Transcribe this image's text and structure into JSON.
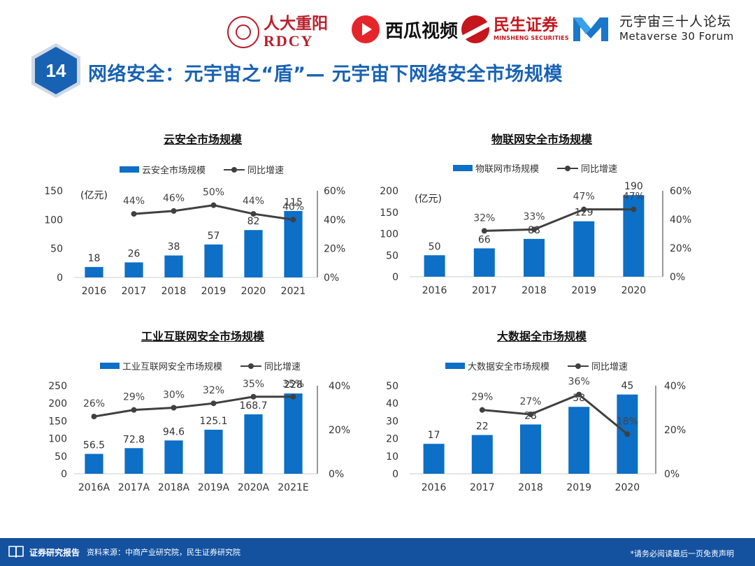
{
  "logos": {
    "rdcy_cn": "人大重阳",
    "rdcy_en": "RDCY",
    "xigua": "西瓜视频",
    "minsheng_cn": "民生证券",
    "minsheng_en": "MINSHENG SECURITIES",
    "forum_cn": "元宇宙三十人论坛",
    "forum_en": "Metaverse 30 Forum"
  },
  "page": {
    "number": "14",
    "title": "网络安全：元宇宙之“盾”— 元宇宙下网络安全市场规模"
  },
  "colors": {
    "bar": "#0d6fc6",
    "line": "#404040",
    "title": "#1862b3",
    "footer": "#1452a0"
  },
  "chart_data": [
    {
      "type": "bar+line",
      "title": "云安全市场规模",
      "unit": "(亿元)",
      "categories": [
        "2016",
        "2017",
        "2018",
        "2019",
        "2020",
        "2021"
      ],
      "series": [
        {
          "name": "云安全市场规模",
          "type": "bar",
          "axis": "left",
          "values": [
            18,
            26,
            38,
            57,
            82,
            115
          ],
          "labels": [
            "18",
            "26",
            "38",
            "57",
            "82",
            "115"
          ]
        },
        {
          "name": "同比增速",
          "type": "line",
          "axis": "right",
          "values": [
            null,
            44,
            46,
            50,
            44,
            40
          ],
          "labels": [
            "",
            "44%",
            "46%",
            "50%",
            "44%",
            "40%"
          ]
        }
      ],
      "ylim": [
        0,
        150
      ],
      "yticks": [
        "0",
        "50",
        "100",
        "150"
      ],
      "y2lim": [
        0,
        60
      ],
      "y2ticks": [
        "0%",
        "20%",
        "40%",
        "60%"
      ]
    },
    {
      "type": "bar+line",
      "title": "物联网安全市场规模",
      "unit": "(亿元)",
      "categories": [
        "2016",
        "2017",
        "2018",
        "2019",
        "2020"
      ],
      "series": [
        {
          "name": "物联网市场规模",
          "type": "bar",
          "axis": "left",
          "values": [
            50,
            66,
            88,
            129,
            190
          ],
          "labels": [
            "50",
            "66",
            "88",
            "129",
            "190"
          ]
        },
        {
          "name": "同比增速",
          "type": "line",
          "axis": "right",
          "values": [
            null,
            32,
            33,
            47,
            47
          ],
          "labels": [
            "",
            "32%",
            "33%",
            "47%",
            "47%"
          ]
        }
      ],
      "ylim": [
        0,
        200
      ],
      "yticks": [
        "0",
        "50",
        "100",
        "150",
        "200"
      ],
      "y2lim": [
        0,
        60
      ],
      "y2ticks": [
        "0%",
        "20%",
        "40%",
        "60%"
      ]
    },
    {
      "type": "bar+line",
      "title": "工业互联网安全市场规模",
      "unit": "",
      "categories": [
        "2016A",
        "2017A",
        "2018A",
        "2019A",
        "2020A",
        "2021E"
      ],
      "series": [
        {
          "name": "工业互联网安全市场规模",
          "type": "bar",
          "axis": "left",
          "values": [
            56.5,
            72.8,
            94.6,
            125.1,
            168.7,
            228
          ],
          "labels": [
            "56.5",
            "72.8",
            "94.6",
            "125.1",
            "168.7",
            "228"
          ]
        },
        {
          "name": "同比增速",
          "type": "line",
          "axis": "right",
          "values": [
            26,
            29,
            30,
            32,
            35,
            35
          ],
          "labels": [
            "26%",
            "29%",
            "30%",
            "32%",
            "35%",
            "35%"
          ]
        }
      ],
      "ylim": [
        0,
        250
      ],
      "yticks": [
        "0",
        "50",
        "100",
        "150",
        "200",
        "250"
      ],
      "y2lim": [
        0,
        40
      ],
      "y2ticks": [
        "0%",
        "20%",
        "40%"
      ]
    },
    {
      "type": "bar+line",
      "title": "大数据全市场规模",
      "unit": "",
      "categories": [
        "2016",
        "2017",
        "2018",
        "2019",
        "2020"
      ],
      "series": [
        {
          "name": "大数据安全市场规模",
          "type": "bar",
          "axis": "left",
          "values": [
            17,
            22,
            28,
            38,
            45
          ],
          "labels": [
            "17",
            "22",
            "28",
            "38",
            "45"
          ]
        },
        {
          "name": "同比增速",
          "type": "line",
          "axis": "right",
          "values": [
            null,
            29,
            27,
            36,
            18
          ],
          "labels": [
            "",
            "29%",
            "27%",
            "36%",
            "18%"
          ]
        }
      ],
      "ylim": [
        0,
        50
      ],
      "yticks": [
        "0",
        "10",
        "20",
        "30",
        "40",
        "50"
      ],
      "y2lim": [
        0,
        40
      ],
      "y2ticks": [
        "0%",
        "20%",
        "40%"
      ]
    }
  ],
  "footer": {
    "label": "证券研究报告",
    "source": "资料来源：中商产业研究院，民生证券研究院",
    "disclaimer": "*请务必阅读最后一页免责声明"
  }
}
